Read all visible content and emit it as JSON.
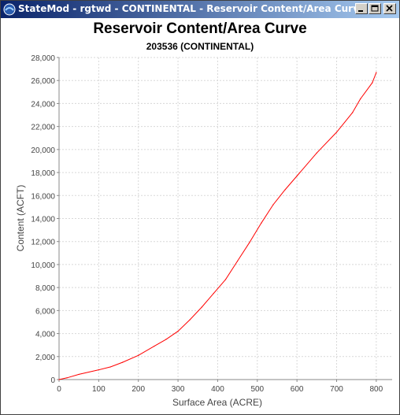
{
  "window": {
    "title": "StateMod - rgtwd - CONTINENTAL - Reservoir Content/Area Curve",
    "icon": "statemod-app-icon",
    "controls": [
      "minimize-icon",
      "maximize-icon",
      "close-icon"
    ]
  },
  "chart_data": {
    "type": "line",
    "title": "Reservoir Content/Area Curve",
    "subtitle": "203536 (CONTINENTAL)",
    "xlabel": "Surface Area (ACRE)",
    "ylabel": "Content (ACFT)",
    "xlim": [
      0,
      840
    ],
    "ylim": [
      0,
      28000
    ],
    "xticks": [
      "0",
      "100",
      "200",
      "300",
      "400",
      "500",
      "600",
      "700",
      "800"
    ],
    "yticks": [
      "0",
      "2,000",
      "4,000",
      "6,000",
      "8,000",
      "10,000",
      "12,000",
      "14,000",
      "16,000",
      "18,000",
      "20,000",
      "22,000",
      "24,000",
      "26,000",
      "28,000"
    ],
    "grid": true,
    "series": [
      {
        "color": "#ff0000",
        "x": [
          0,
          20,
          50,
          100,
          130,
          160,
          200,
          240,
          270,
          300,
          330,
          360,
          390,
          420,
          450,
          480,
          510,
          540,
          570,
          600,
          650,
          700,
          740,
          760,
          790,
          800
        ],
        "y": [
          0,
          150,
          450,
          850,
          1100,
          1500,
          2100,
          2900,
          3500,
          4200,
          5200,
          6300,
          7500,
          8700,
          10300,
          11900,
          13600,
          15200,
          16500,
          17700,
          19700,
          21500,
          23200,
          24400,
          25800,
          26700
        ]
      }
    ]
  }
}
